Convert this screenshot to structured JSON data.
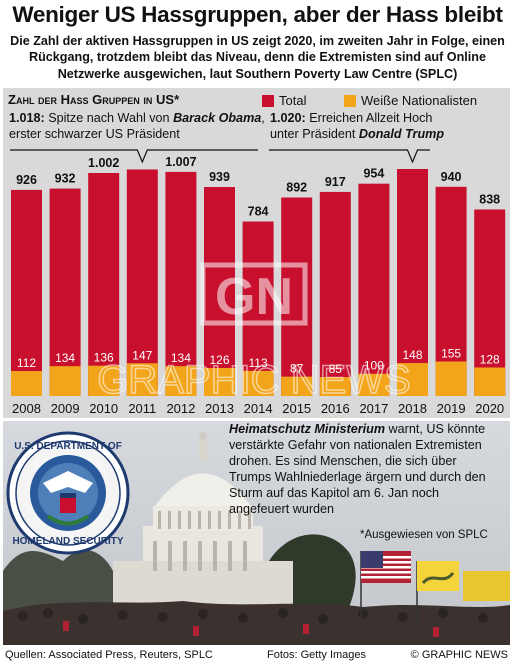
{
  "title": "Weniger US Hassgruppen, aber der Hass bleibt",
  "subtitle": "Die Zahl der aktiven Hassgruppen in US zeigt 2020, im zweiten Jahr in Folge, einen Rückgang, trotzdem bleibt das Niveau, denn die Extremisten sind auf Online Netzwerke ausgewichen, laut Southern Poverty Law Centre (SPLC)",
  "chart_heading": "Zahl der Hass Gruppen in US*",
  "legend": [
    {
      "label": "Total",
      "color": "#c8102e"
    },
    {
      "label": "Weiße Nationalisten",
      "color": "#f2a51a"
    }
  ],
  "annotations": [
    {
      "value": "1.018:",
      "text": "Spitze nach Wahl von",
      "name": "Barack Obama",
      "tail": ", erster schwarzer US Präsident"
    },
    {
      "value": "1.020:",
      "text": "Erreichen Allzeit Hoch unter Präsident",
      "name": "Donald Trump",
      "tail": ""
    }
  ],
  "chart_data": {
    "type": "bar",
    "title": "Zahl der Hass Gruppen in US*",
    "categories": [
      "2008",
      "2009",
      "2010",
      "2011",
      "2012",
      "2013",
      "2014",
      "2015",
      "2016",
      "2017",
      "2018",
      "2019",
      "2020"
    ],
    "series": [
      {
        "name": "Total",
        "values": [
          926,
          932,
          1002,
          1018,
          1007,
          939,
          784,
          892,
          917,
          954,
          1020,
          940,
          838
        ],
        "color": "#c8102e"
      },
      {
        "name": "Weiße Nationalisten",
        "values": [
          112,
          134,
          136,
          147,
          134,
          126,
          113,
          87,
          85,
          100,
          148,
          155,
          128
        ],
        "color": "#f2a51a"
      }
    ],
    "total_labels": [
      "926",
      "932",
      "1.002",
      "",
      "1.007",
      "939",
      "784",
      "892",
      "917",
      "954",
      "",
      "940",
      "838"
    ],
    "wn_labels": [
      "112",
      "134",
      "136",
      "147",
      "134",
      "126",
      "113",
      "87",
      "85",
      "100",
      "148",
      "155",
      "128"
    ],
    "ylim": [
      0,
      1020
    ]
  },
  "caption": {
    "agency": "Heimatschutz Ministerium",
    "text": " warnt, US könnte verstärkte Gefahr von nationalen Extremisten drohen. Es sind Menschen, die sich über Trumps Wahlniederlage ärgern und durch den Sturm auf das Kapitol am 6. Jan noch angefeuert wurden"
  },
  "footnote": "*Ausgewiesen von SPLC",
  "seal": {
    "top": "U.S. DEPARTMENT OF",
    "bottom": "HOMELAND SECURITY"
  },
  "watermark": {
    "logo": "GN",
    "text": "GRAPHIC NEWS"
  },
  "footer": {
    "sources": "Quellen: Associated Press, Reuters, SPLC",
    "photos": "Fotos: Getty Images",
    "copyright": "© GRAPHIC NEWS"
  }
}
